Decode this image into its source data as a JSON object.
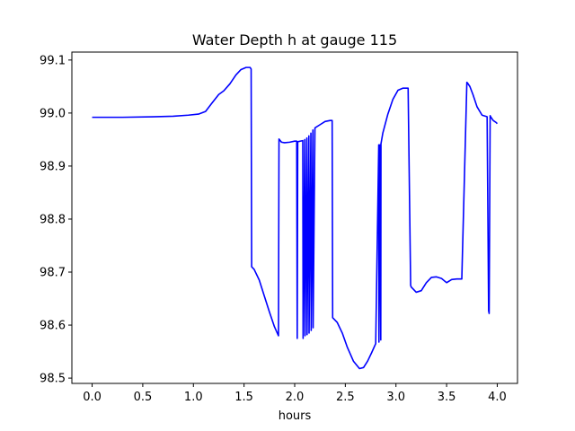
{
  "chart_data": {
    "type": "line",
    "title": "Water Depth h at gauge 115",
    "xlabel": "hours",
    "ylabel": "",
    "xlim": [
      -0.2,
      4.2
    ],
    "ylim": [
      98.49,
      99.115
    ],
    "xticks": [
      0.0,
      0.5,
      1.0,
      1.5,
      2.0,
      2.5,
      3.0,
      3.5,
      4.0
    ],
    "xtick_labels": [
      "0.0",
      "0.5",
      "1.0",
      "1.5",
      "2.0",
      "2.5",
      "3.0",
      "3.5",
      "4.0"
    ],
    "yticks": [
      98.5,
      98.6,
      98.7,
      98.8,
      98.9,
      99.0,
      99.1
    ],
    "ytick_labels": [
      "98.5",
      "98.6",
      "98.7",
      "98.8",
      "98.9",
      "99.0",
      "99.1"
    ],
    "grid": false,
    "legend": "none",
    "series": [
      {
        "color": "#0000ff",
        "x": [
          0.0,
          0.3,
          0.6,
          0.8,
          0.95,
          1.05,
          1.12,
          1.18,
          1.25,
          1.3,
          1.36,
          1.42,
          1.47,
          1.52,
          1.56,
          1.57,
          1.575,
          1.6,
          1.65,
          1.7,
          1.75,
          1.8,
          1.84,
          1.845,
          1.87,
          1.9,
          1.95,
          2.0,
          2.02,
          2.025,
          2.03,
          2.08,
          2.083,
          2.1,
          2.102,
          2.12,
          2.122,
          2.14,
          2.142,
          2.16,
          2.163,
          2.18,
          2.182,
          2.2,
          2.25,
          2.3,
          2.35,
          2.37,
          2.375,
          2.42,
          2.47,
          2.52,
          2.58,
          2.64,
          2.68,
          2.72,
          2.76,
          2.8,
          2.83,
          2.832,
          2.84,
          2.85,
          2.852,
          2.87,
          2.92,
          2.97,
          3.02,
          3.07,
          3.12,
          3.145,
          3.15,
          3.2,
          3.25,
          3.3,
          3.35,
          3.4,
          3.45,
          3.5,
          3.55,
          3.6,
          3.65,
          3.7,
          3.705,
          3.73,
          3.76,
          3.8,
          3.85,
          3.9,
          3.915,
          3.92,
          3.93,
          3.935,
          3.96,
          3.99,
          4.0
        ],
        "y": [
          98.992,
          98.992,
          98.993,
          98.994,
          98.996,
          98.998,
          99.003,
          99.018,
          99.035,
          99.042,
          99.055,
          99.072,
          99.082,
          99.086,
          99.086,
          99.083,
          98.71,
          98.705,
          98.685,
          98.655,
          98.625,
          98.597,
          98.58,
          98.951,
          98.945,
          98.944,
          98.945,
          98.947,
          98.947,
          98.575,
          98.946,
          98.948,
          98.575,
          98.95,
          98.58,
          98.953,
          98.582,
          98.957,
          98.585,
          98.962,
          98.59,
          98.968,
          98.595,
          98.972,
          98.978,
          98.984,
          98.986,
          98.986,
          98.614,
          98.605,
          98.585,
          98.558,
          98.532,
          98.518,
          98.52,
          98.532,
          98.548,
          98.565,
          98.94,
          98.568,
          98.94,
          98.572,
          98.942,
          98.962,
          98.998,
          99.026,
          99.043,
          99.047,
          99.047,
          98.675,
          98.672,
          98.662,
          98.665,
          98.68,
          98.69,
          98.691,
          98.688,
          98.68,
          98.686,
          98.687,
          98.687,
          99.058,
          99.057,
          99.05,
          99.035,
          99.012,
          98.996,
          98.993,
          98.627,
          98.622,
          98.995,
          98.993,
          98.986,
          98.982,
          98.98
        ]
      }
    ]
  }
}
